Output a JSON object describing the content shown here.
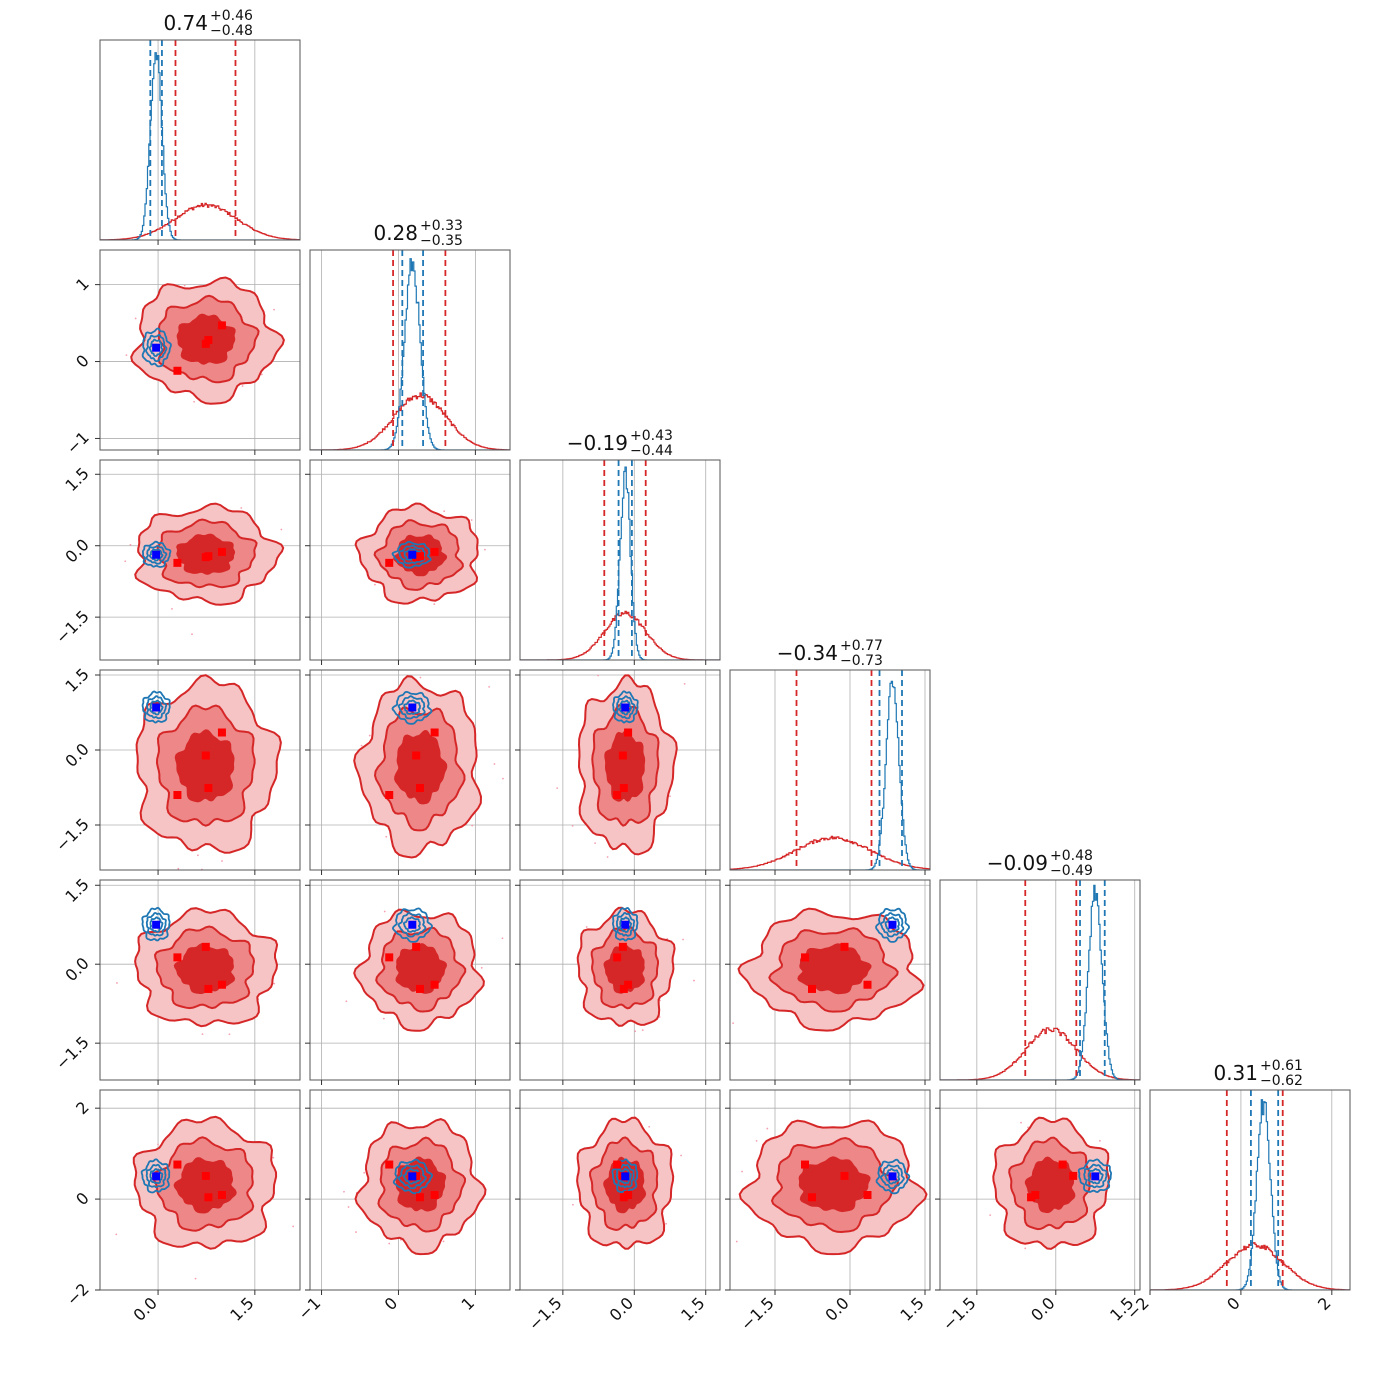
{
  "colors": {
    "red": "#d62728",
    "red_mid": "#ee8888",
    "red_light": "#f6c4c4",
    "blue": "#1f77b4",
    "marker_blue": "#0000ff",
    "marker_red": "#ff0000",
    "grid": "#b0b0b0",
    "axis": "#555555"
  },
  "chart_data": {
    "type": "corner",
    "n_params": 6,
    "grid": true,
    "titles": [
      {
        "center": "0.74",
        "plus": "+0.46",
        "minus": "−0.48"
      },
      {
        "center": "0.28",
        "plus": "+0.33",
        "minus": "−0.35"
      },
      {
        "center": "−0.19",
        "plus": "+0.43",
        "minus": "−0.44"
      },
      {
        "center": "−0.34",
        "plus": "+0.77",
        "minus": "−0.73"
      },
      {
        "center": "−0.09",
        "plus": "+0.48",
        "minus": "−0.49"
      },
      {
        "center": "0.31",
        "plus": "+0.61",
        "minus": "−0.62"
      }
    ],
    "ranges": [
      [
        -0.9,
        2.2
      ],
      [
        -1.15,
        1.45
      ],
      [
        -2.4,
        1.8
      ],
      [
        -2.4,
        1.6
      ],
      [
        -2.2,
        1.6
      ],
      [
        -2.0,
        2.4
      ]
    ],
    "x_ticks": [
      {
        "values": [
          0.0,
          1.5
        ],
        "labels": [
          "0.0",
          "1.5"
        ]
      },
      {
        "values": [
          -1,
          0,
          1
        ],
        "labels": [
          "−1",
          "0",
          "1"
        ]
      },
      {
        "values": [
          -1.5,
          0.0,
          1.5
        ],
        "labels": [
          "−1.5",
          "0.0",
          "1.5"
        ]
      },
      {
        "values": [
          -1.5,
          0.0,
          1.5
        ],
        "labels": [
          "−1.5",
          "0.0",
          "1.5"
        ]
      },
      {
        "values": [
          -1.5,
          0.0,
          1.5
        ],
        "labels": [
          "−1.5",
          "0.0",
          "1.5"
        ]
      },
      {
        "values": [
          -2,
          0,
          2
        ],
        "labels": [
          "−2",
          "0",
          "2"
        ]
      }
    ],
    "y_ticks": [
      null,
      {
        "values": [
          -1,
          0,
          1
        ],
        "labels": [
          "−1",
          "0",
          "1"
        ]
      },
      {
        "values": [
          -1.5,
          0.0,
          1.5
        ],
        "labels": [
          "−1.5",
          "0.0",
          "1.5"
        ]
      },
      {
        "values": [
          -1.5,
          0.0,
          1.5
        ],
        "labels": [
          "−1.5",
          "0.0",
          "1.5"
        ]
      },
      {
        "values": [
          -1.5,
          0.0,
          1.5
        ],
        "labels": [
          "−1.5",
          "0.0",
          "1.5"
        ]
      },
      {
        "values": [
          -2,
          0,
          2
        ],
        "labels": [
          "−2",
          "0",
          "2"
        ]
      }
    ],
    "series": [
      {
        "color": "red",
        "means": [
          0.74,
          0.28,
          -0.19,
          -0.34,
          -0.09,
          0.31
        ],
        "sigmas": [
          0.48,
          0.34,
          0.44,
          0.75,
          0.48,
          0.62
        ],
        "quantiles": [
          [
            0.27,
            1.2
          ],
          [
            -0.07,
            0.61
          ],
          [
            -0.63,
            0.24
          ],
          [
            -1.07,
            0.43
          ],
          [
            -0.58,
            0.39
          ],
          [
            -0.31,
            0.92
          ]
        ]
      },
      {
        "color": "blue",
        "means": [
          -0.03,
          0.18,
          -0.19,
          0.85,
          0.75,
          0.5
        ],
        "sigmas": [
          0.09,
          0.1,
          0.11,
          0.13,
          0.13,
          0.15
        ],
        "quantiles": [
          [
            -0.12,
            0.06
          ],
          [
            0.05,
            0.32
          ],
          [
            -0.33,
            -0.05
          ],
          [
            0.59,
            1.04
          ],
          [
            0.46,
            0.93
          ],
          [
            0.22,
            0.82
          ]
        ]
      }
    ],
    "truth_markers": {
      "blue": [
        -0.03,
        0.18,
        -0.19,
        0.85,
        0.75,
        0.5
      ],
      "red": [
        [
          0.99,
          0.47,
          -0.13,
          0.35,
          -0.39,
          0.09
        ],
        [
          0.3,
          -0.12,
          -0.36,
          -0.9,
          0.13,
          0.76
        ],
        [
          0.78,
          0.28,
          -0.22,
          -0.76,
          -0.47,
          0.04
        ],
        [
          0.74,
          0.23,
          -0.24,
          -0.11,
          0.33,
          0.51
        ]
      ]
    }
  }
}
